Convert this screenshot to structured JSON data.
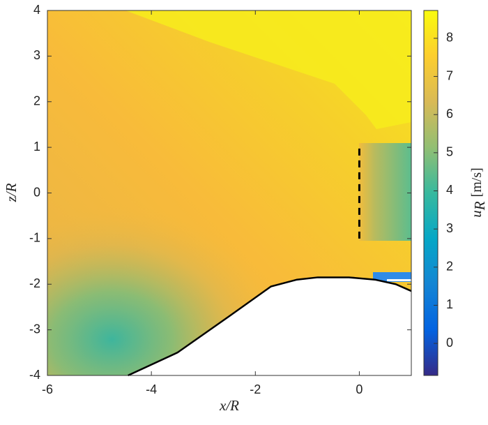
{
  "chart_data": {
    "type": "contour",
    "xlabel": "x/R",
    "ylabel": "z/R",
    "xlim": [
      -6,
      1
    ],
    "ylim": [
      -4,
      4
    ],
    "xticks": [
      -6,
      -4,
      -2,
      0
    ],
    "yticks": [
      -4,
      -3,
      -2,
      -1,
      0,
      1,
      2,
      3,
      4
    ],
    "colorbar": {
      "label": "u",
      "label_subscript": "R",
      "label_unit": "[m/s]",
      "lim": [
        -0.84,
        8.73
      ],
      "ticks": [
        0,
        1,
        2,
        3,
        4,
        5,
        6,
        7,
        8
      ],
      "colormap": [
        "#352a87",
        "#0363e1",
        "#1485d4",
        "#06a7c6",
        "#38b99e",
        "#92bf73",
        "#d9ba56",
        "#fcce2e",
        "#f9fb0e"
      ]
    },
    "terrain": {
      "x": [
        -4.45,
        -3.5,
        -2.5,
        -1.7,
        -1.2,
        -0.8,
        -0.2,
        0.3,
        0.7,
        1
      ],
      "z": [
        -4,
        -3.5,
        -2.7,
        -2.05,
        -1.9,
        -1.85,
        -1.85,
        -1.9,
        -2.0,
        -2.15
      ]
    },
    "rotor": {
      "x": 0,
      "z": [
        -1,
        1
      ]
    }
  }
}
